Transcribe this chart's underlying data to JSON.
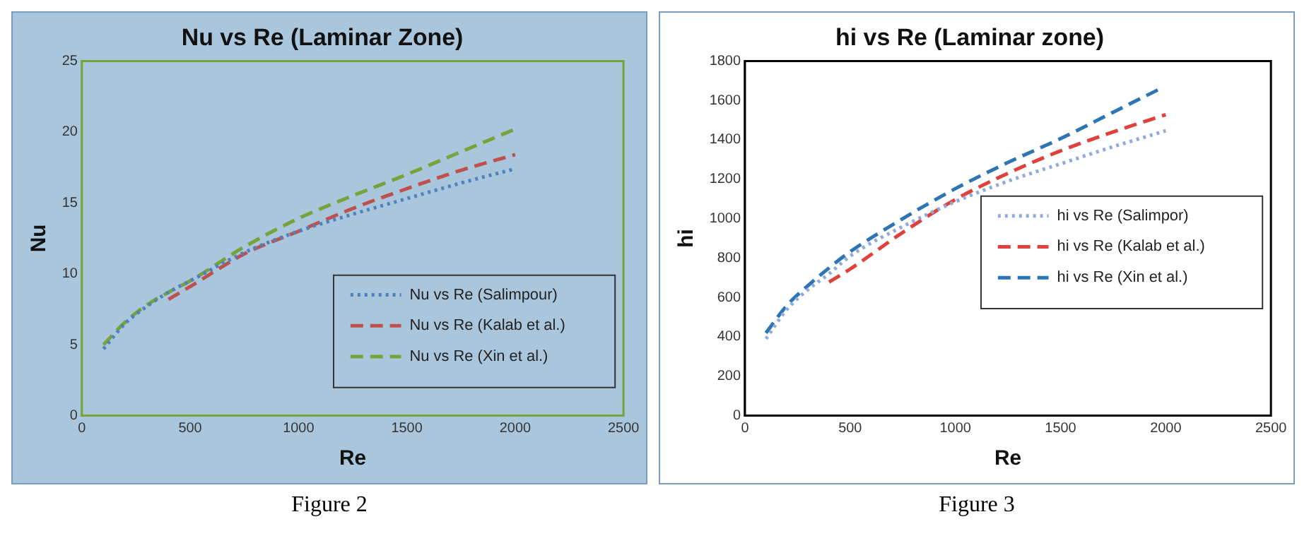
{
  "chart_data": [
    {
      "type": "line",
      "title": "Nu vs Re (Laminar Zone)",
      "xlabel": "Re",
      "ylabel": "Nu",
      "xlim": [
        0,
        2500
      ],
      "xticks": [
        0,
        500,
        1000,
        1500,
        2000,
        2500
      ],
      "ylim": [
        0,
        25
      ],
      "yticks": [
        0,
        5,
        10,
        15,
        20,
        25
      ],
      "grid": false,
      "legend": "bottom right",
      "marker": "none",
      "annotations": [
        "Figure 2"
      ],
      "series": [
        {
          "name": "Nu vs Re (Salimpour)",
          "color": "#4f81bd",
          "line_style": "dotted",
          "x": [
            100,
            200,
            300,
            400,
            500,
            750,
            1000,
            1250,
            1500,
            1750,
            2000
          ],
          "values": [
            4.7,
            6.5,
            7.7,
            8.7,
            9.5,
            11.5,
            13.0,
            14.2,
            15.3,
            16.4,
            17.4
          ]
        },
        {
          "name": "Nu vs Re (Kalab et al.)",
          "color": "#c0504d",
          "line_style": "dashed",
          "x": [
            400,
            500,
            750,
            1000,
            1250,
            1500,
            1750,
            2000
          ],
          "values": [
            8.2,
            9.1,
            11.4,
            13.0,
            14.6,
            16.0,
            17.3,
            18.4
          ]
        },
        {
          "name": "Nu vs Re (Xin et al.)",
          "color": "#77a33a",
          "line_style": "dashed",
          "x": [
            100,
            200,
            300,
            400,
            500,
            750,
            1000,
            1250,
            1500,
            1750,
            2000
          ],
          "values": [
            5.0,
            6.6,
            7.8,
            8.7,
            9.5,
            11.9,
            13.9,
            15.5,
            17.0,
            18.6,
            20.2
          ]
        }
      ]
    },
    {
      "type": "line",
      "title": "hi vs Re (Laminar zone)",
      "xlabel": "Re",
      "ylabel": "hi",
      "xlim": [
        0,
        2500
      ],
      "xticks": [
        0,
        500,
        1000,
        1500,
        2000,
        2500
      ],
      "ylim": [
        0,
        1800
      ],
      "yticks": [
        0,
        200,
        400,
        600,
        800,
        1000,
        1200,
        1400,
        1600,
        1800
      ],
      "grid": false,
      "legend": "right",
      "marker": "none",
      "annotations": [
        "Figure 3"
      ],
      "series": [
        {
          "name": "hi vs Re (Salimpor)",
          "color": "#8faadc",
          "line_style": "dotted",
          "x": [
            100,
            200,
            300,
            400,
            500,
            750,
            1000,
            1250,
            1500,
            1750,
            2000
          ],
          "values": [
            390,
            540,
            640,
            720,
            810,
            960,
            1086,
            1190,
            1278,
            1365,
            1446
          ]
        },
        {
          "name": "hi vs Re (Kalab et al.)",
          "color": "#e0413b",
          "line_style": "dashed",
          "x": [
            400,
            500,
            750,
            1000,
            1250,
            1500,
            1750,
            2000
          ],
          "values": [
            678,
            744,
            930,
            1097,
            1230,
            1344,
            1440,
            1528
          ]
        },
        {
          "name": "hi vs Re (Xin et al.)",
          "color": "#2e75b6",
          "line_style": "dashed",
          "x": [
            100,
            200,
            300,
            400,
            500,
            750,
            1000,
            1250,
            1500,
            1750,
            1975
          ],
          "values": [
            420,
            560,
            660,
            750,
            832,
            1000,
            1152,
            1285,
            1406,
            1540,
            1660
          ]
        }
      ]
    }
  ]
}
